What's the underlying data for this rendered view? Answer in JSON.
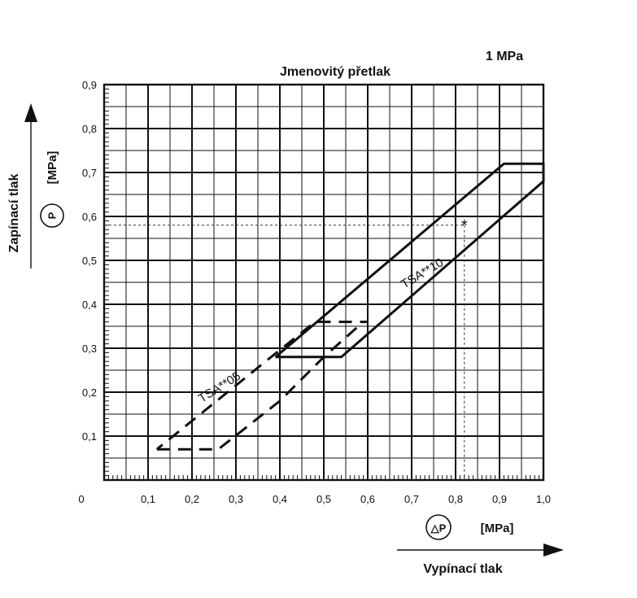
{
  "chart_data": {
    "type": "line",
    "title": "Jmenovitý přetlak",
    "subtitle": "1 MPa",
    "xlabel": "Vypínací tlak",
    "xunit": "[MPa]",
    "xsymbol": "△P",
    "ylabel": "Zapínací tlak",
    "yunit": "[MPa]",
    "ysymbol": "P",
    "xlim": [
      0,
      1.0
    ],
    "ylim": [
      0,
      0.9
    ],
    "grid": true,
    "origin_label": "0",
    "x_ticks": [
      "0,1",
      "0,2",
      "0,3",
      "0,4",
      "0,5",
      "0,6",
      "0,7",
      "0,8",
      "0,9",
      "1,0"
    ],
    "y_ticks": [
      "0,1",
      "0,2",
      "0,3",
      "0,4",
      "0,5",
      "0,6",
      "0,7",
      "0,8",
      "0,9"
    ],
    "series": [
      {
        "name": "TSA**05",
        "style": "dashed",
        "x": [
          0.12,
          0.22,
          0.26,
          0.4,
          0.5,
          0.59,
          0.6,
          0.59,
          0.48,
          0.38,
          0.12
        ],
        "y": [
          0.07,
          0.07,
          0.07,
          0.18,
          0.28,
          0.36,
          0.36,
          0.36,
          0.36,
          0.28,
          0.07
        ]
      },
      {
        "name": "TSA**10",
        "style": "solid",
        "x": [
          0.39,
          0.52,
          0.54,
          1.0,
          1.0,
          0.91,
          0.39
        ],
        "y": [
          0.28,
          0.28,
          0.28,
          0.68,
          0.72,
          0.72,
          0.28
        ]
      }
    ],
    "marker": {
      "x": 0.82,
      "y": 0.58,
      "symbol": "*"
    }
  }
}
